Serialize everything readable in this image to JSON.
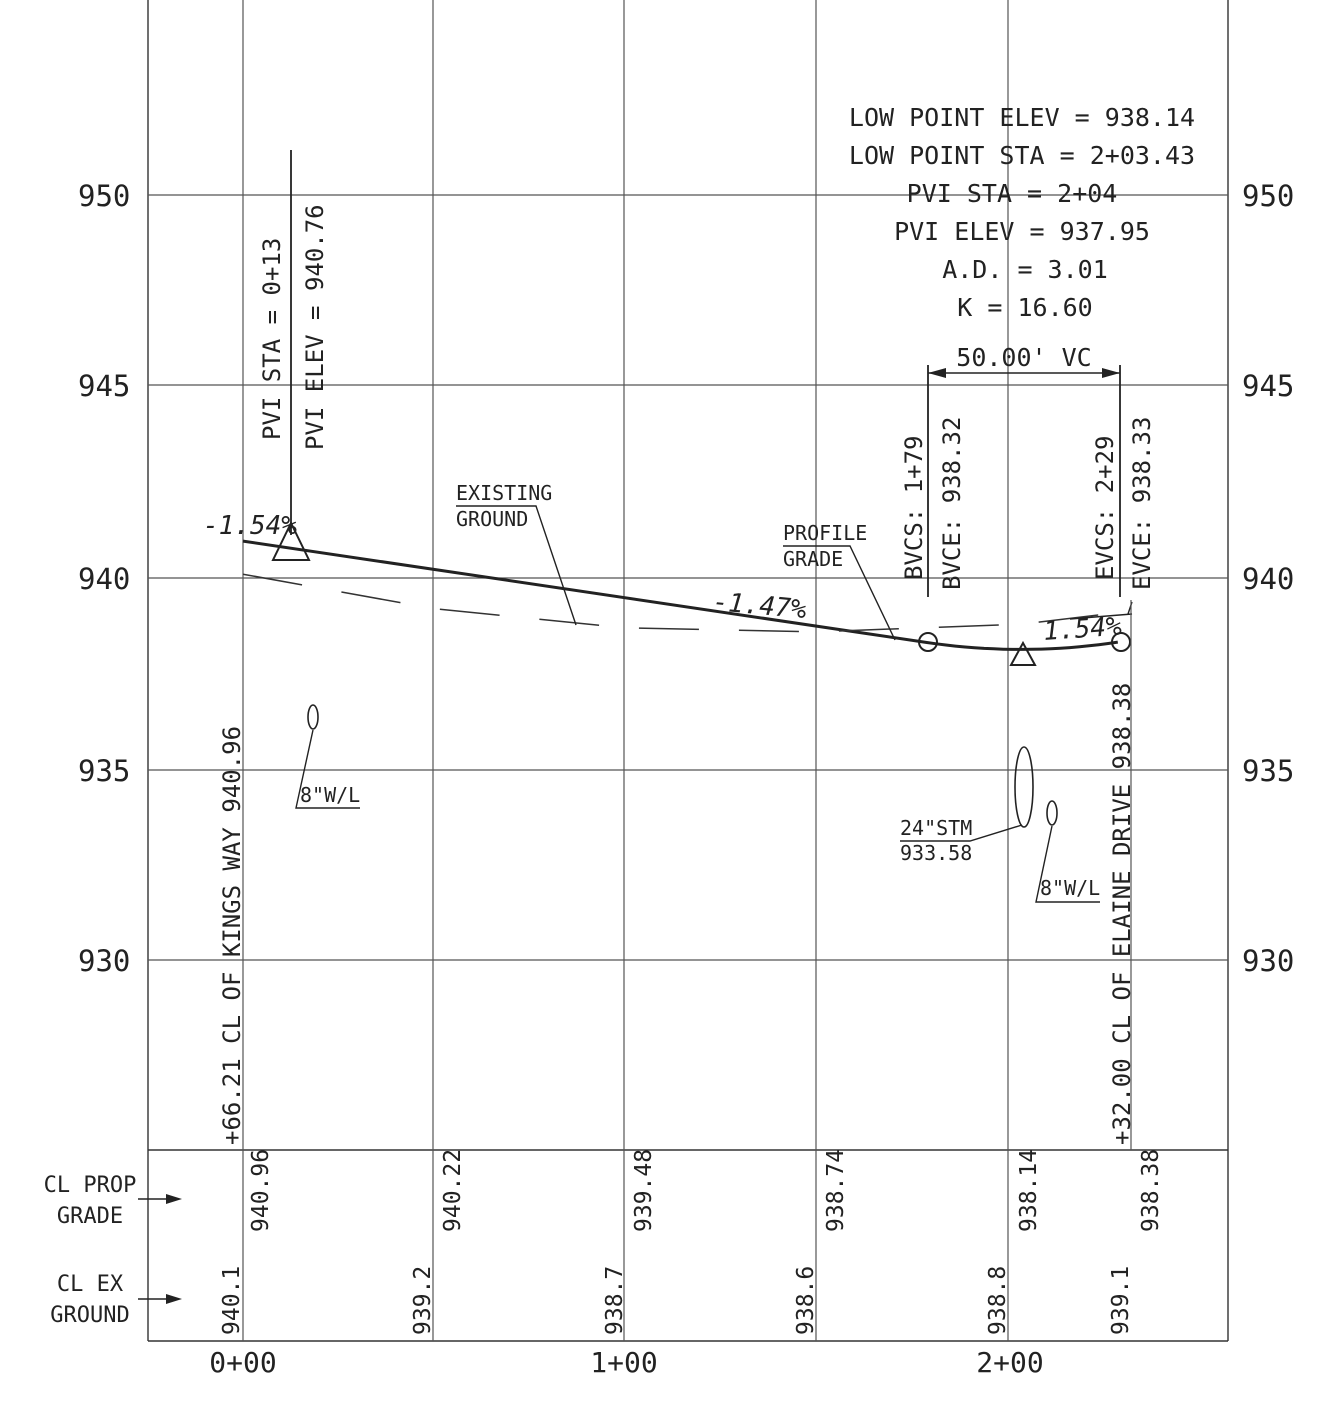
{
  "y_axis": {
    "left_labels": [
      "950",
      "945",
      "940",
      "935",
      "930"
    ],
    "right_labels": [
      "950",
      "945",
      "940",
      "935",
      "930"
    ]
  },
  "x_axis": {
    "station_labels": [
      "0+00",
      "1+00",
      "2+00"
    ]
  },
  "curve_info": {
    "lines": [
      "LOW POINT ELEV = 938.14",
      "LOW POINT STA = 2+03.43",
      "PVI STA = 2+04",
      "PVI ELEV = 937.95",
      "A.D. = 3.01",
      "K = 16.60"
    ],
    "vc_length": "50.00' VC"
  },
  "pvi_start": {
    "sta": "PVI STA  = 0+13",
    "elev": "PVI ELEV = 940.76"
  },
  "bvc": {
    "sta": "BVCS: 1+79",
    "elev": "BVCE: 938.32"
  },
  "evc": {
    "sta": "EVCS: 2+29",
    "elev": "EVCE: 938.33"
  },
  "grades": {
    "g1": "-1.54%",
    "g2": "-1.47%",
    "g3": "1.54%"
  },
  "callouts": {
    "existing_ground": [
      "EXISTING",
      "GROUND"
    ],
    "profile_grade": [
      "PROFILE",
      "GRADE"
    ],
    "waterline_left": "8\"W/L",
    "waterline_right": "8\"W/L",
    "storm": [
      "24\"STM",
      "933.58"
    ]
  },
  "street_labels": {
    "left": "+66.21 CL OF KINGS WAY 940.96",
    "right": "+32.00 CL OF ELAINE DRIVE 938.38"
  },
  "row_labels": {
    "prop_grade": [
      "CL PROP",
      "GRADE"
    ],
    "ex_ground": [
      "CL EX",
      "GROUND"
    ]
  },
  "prop_grade_values": [
    "940.96",
    "940.22",
    "939.48",
    "938.74",
    "938.14",
    "938.38"
  ],
  "ex_ground_values": [
    "940.1",
    "939.2",
    "938.7",
    "938.6",
    "938.8",
    "939.1"
  ],
  "chart_data": {
    "type": "line",
    "xlabel": "",
    "ylabel": "",
    "ylim": [
      925,
      955
    ],
    "series": [
      {
        "name": "PROFILE GRADE",
        "x": [
          0,
          13,
          179,
          204,
          229
        ],
        "y": [
          940.96,
          940.76,
          938.32,
          938.14,
          938.33
        ]
      },
      {
        "name": "EXISTING GROUND",
        "x": [
          0,
          50,
          100,
          150,
          204,
          229
        ],
        "y": [
          940.1,
          939.2,
          938.7,
          938.6,
          938.8,
          939.1
        ]
      }
    ]
  }
}
